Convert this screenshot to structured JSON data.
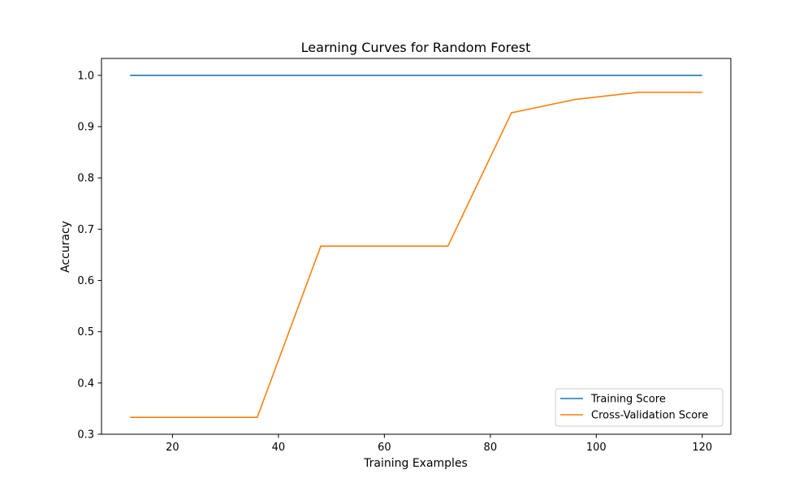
{
  "chart_data": {
    "type": "line",
    "title": "Learning Curves for Random Forest",
    "xlabel": "Training Examples",
    "ylabel": "Accuracy",
    "x": [
      12,
      24,
      36,
      48,
      60,
      72,
      84,
      96,
      108,
      120
    ],
    "series": [
      {
        "name": "Training Score",
        "color": "#1f77b4",
        "values": [
          1.0,
          1.0,
          1.0,
          1.0,
          1.0,
          1.0,
          1.0,
          1.0,
          1.0,
          1.0
        ]
      },
      {
        "name": "Cross-Validation Score",
        "color": "#ff7f0e",
        "values": [
          0.333,
          0.333,
          0.333,
          0.667,
          0.667,
          0.667,
          0.927,
          0.953,
          0.967,
          0.967
        ]
      }
    ],
    "xlim": [
      6.6,
      125.4
    ],
    "ylim": [
      0.3,
      1.033
    ],
    "xticks": [
      "20",
      "40",
      "60",
      "80",
      "100",
      "120"
    ],
    "yticks": [
      "0.3",
      "0.4",
      "0.5",
      "0.6",
      "0.7",
      "0.8",
      "0.9",
      "1.0"
    ],
    "grid": false,
    "legend_position": "lower-right"
  }
}
